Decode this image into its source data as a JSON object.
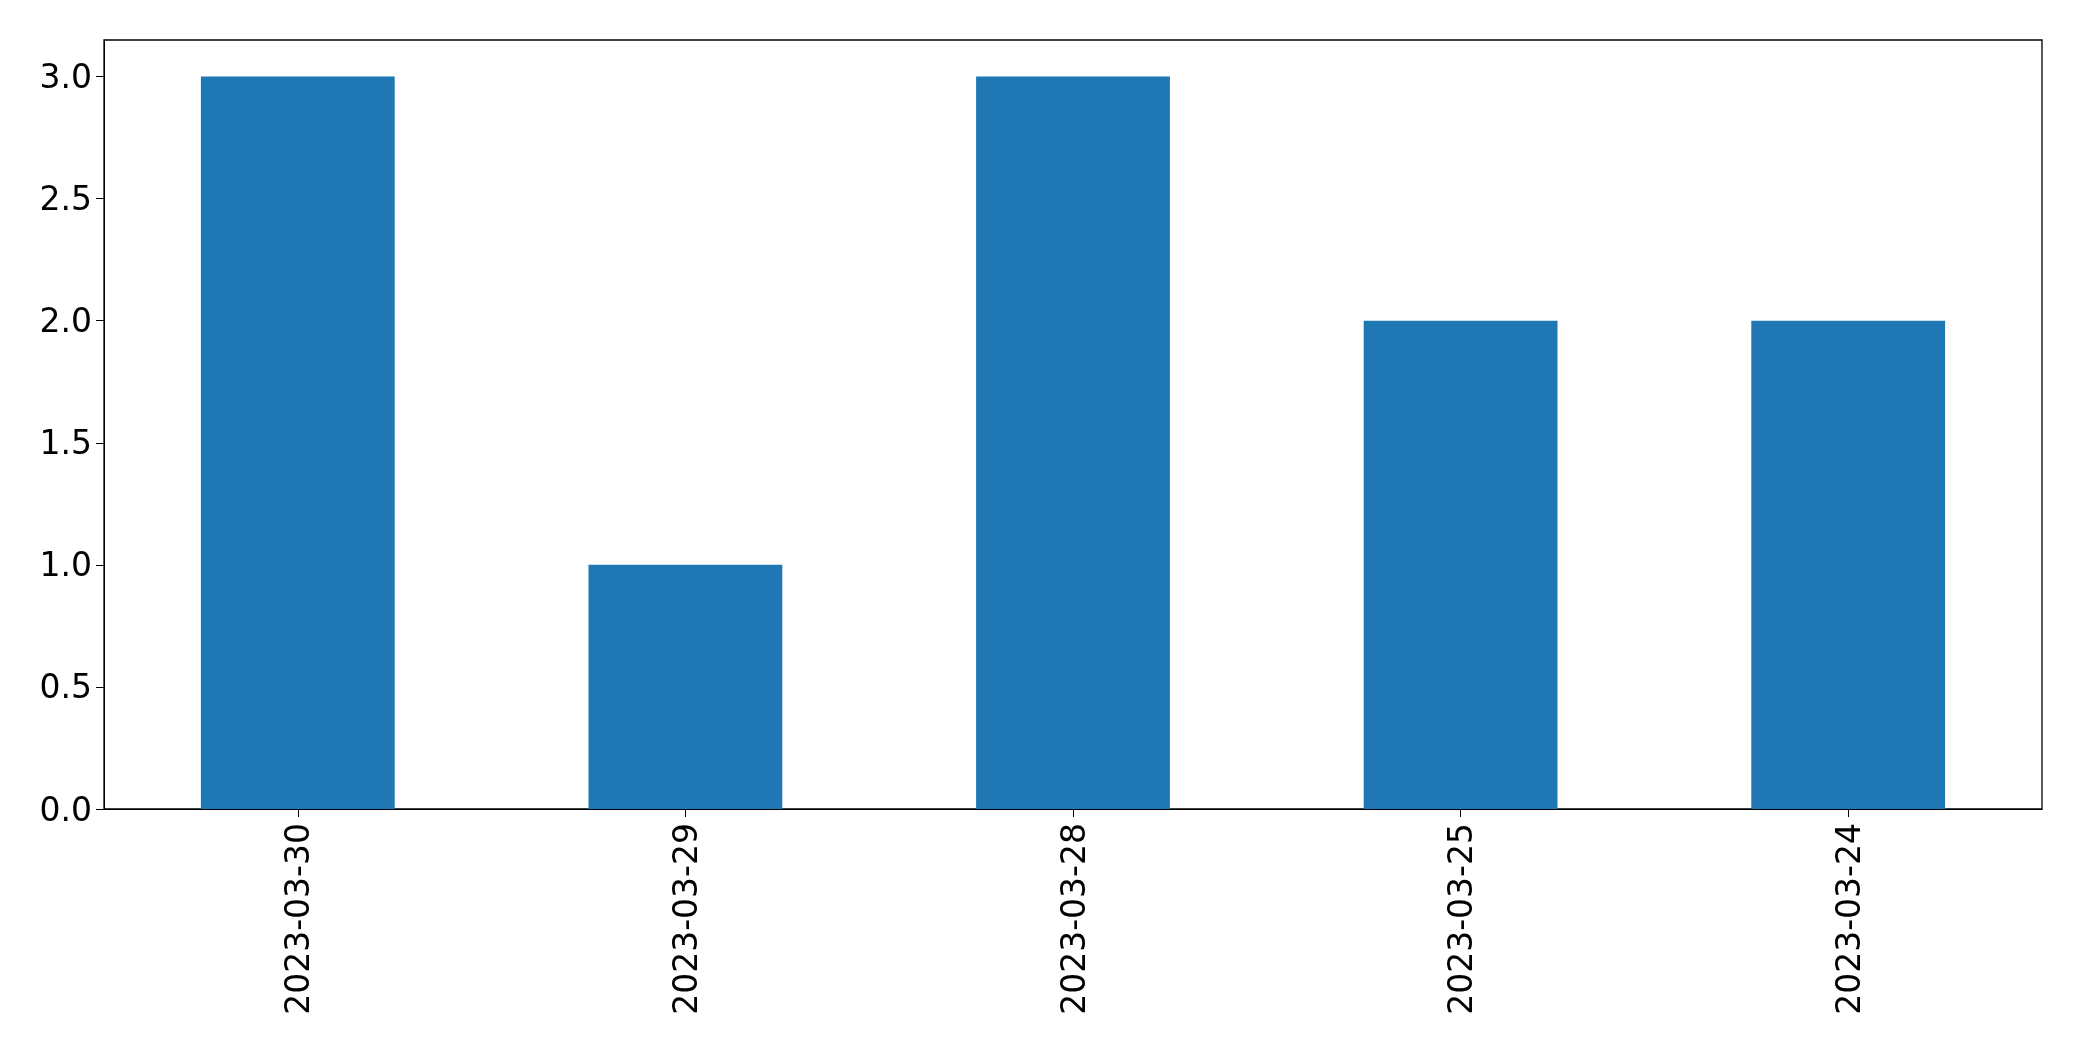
{
  "chart_data": {
    "type": "bar",
    "categories": [
      "2023-03-30",
      "2023-03-29",
      "2023-03-28",
      "2023-03-25",
      "2023-03-24"
    ],
    "values": [
      3,
      1,
      3,
      2,
      2
    ],
    "color": "#1f77b4",
    "ylim": [
      0,
      3.15
    ],
    "yticks": [
      {
        "value": 0,
        "label": "0.0"
      },
      {
        "value": 0.5,
        "label": "0.5"
      },
      {
        "value": 1,
        "label": "1.0"
      },
      {
        "value": 1.5,
        "label": "1.5"
      },
      {
        "value": 2,
        "label": "2.0"
      },
      {
        "value": 2.5,
        "label": "2.5"
      },
      {
        "value": 3,
        "label": "3.0"
      }
    ],
    "grid": false
  }
}
